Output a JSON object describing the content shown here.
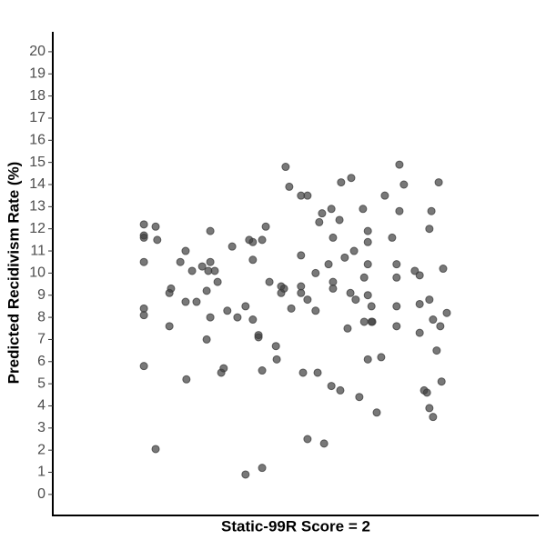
{
  "chart_data": {
    "type": "scatter",
    "xlabel": "Static-99R Score = 2",
    "ylabel": "Predicted Recidivism Rate (%)",
    "x": [
      1.625,
      1.625,
      1.625,
      1.625,
      1.625,
      1.625,
      1.625,
      1.654,
      1.654,
      1.658,
      1.688,
      1.688,
      1.692,
      1.715,
      1.728,
      1.728,
      1.73,
      1.744,
      1.755,
      1.769,
      1.78,
      1.78,
      1.784,
      1.789,
      1.789,
      1.789,
      1.8,
      1.807,
      1.816,
      1.822,
      1.831,
      1.843,
      1.856,
      1.876,
      1.876,
      1.885,
      1.894,
      1.894,
      1.894,
      1.908,
      1.908,
      1.917,
      1.917,
      1.917,
      1.926,
      1.935,
      1.951,
      1.953,
      1.964,
      1.964,
      1.971,
      1.975,
      1.984,
      1.989,
      2.013,
      2.013,
      2.013,
      2.013,
      2.018,
      2.029,
      2.029,
      2.029,
      2.049,
      2.049,
      2.054,
      2.058,
      2.065,
      2.07,
      2.081,
      2.088,
      2.088,
      2.092,
      2.092,
      2.092,
      2.108,
      2.11,
      2.112,
      2.121,
      2.128,
      2.135,
      2.137,
      2.144,
      2.148,
      2.157,
      2.166,
      2.169,
      2.169,
      2.178,
      2.178,
      2.178,
      2.178,
      2.178,
      2.187,
      2.187,
      2.189,
      2.2,
      2.211,
      2.22,
      2.238,
      2.249,
      2.249,
      2.249,
      2.249,
      2.256,
      2.256,
      2.267,
      2.294,
      2.306,
      2.306,
      2.306,
      2.317,
      2.324,
      2.33,
      2.33,
      2.33,
      2.335,
      2.339,
      2.339,
      2.348,
      2.353,
      2.357,
      2.36,
      2.364,
      2.373
    ],
    "values": [
      12.2,
      11.7,
      11.6,
      10.5,
      8.4,
      8.1,
      5.8,
      12.1,
      2.05,
      11.5,
      9.1,
      7.6,
      9.3,
      10.5,
      11.0,
      8.7,
      5.2,
      10.1,
      8.7,
      10.3,
      9.2,
      7.0,
      10.1,
      11.9,
      10.5,
      8.0,
      10.1,
      9.6,
      5.5,
      5.7,
      8.3,
      11.2,
      8.0,
      8.5,
      0.9,
      11.5,
      11.4,
      10.6,
      7.9,
      7.2,
      7.1,
      11.5,
      5.6,
      1.2,
      12.1,
      9.6,
      6.7,
      6.1,
      9.4,
      9.1,
      9.3,
      14.8,
      13.9,
      8.4,
      13.5,
      10.8,
      9.4,
      9.1,
      5.5,
      13.5,
      2.5,
      8.8,
      8.3,
      10.0,
      5.5,
      12.3,
      12.7,
      2.3,
      10.4,
      12.9,
      4.9,
      11.6,
      9.3,
      9.6,
      12.4,
      4.7,
      14.1,
      10.7,
      7.5,
      9.1,
      14.3,
      11.0,
      8.8,
      4.4,
      12.9,
      9.8,
      7.8,
      11.9,
      11.4,
      10.4,
      9.0,
      6.1,
      8.5,
      7.8,
      7.8,
      3.7,
      6.2,
      13.5,
      11.6,
      10.4,
      9.8,
      8.5,
      7.6,
      14.9,
      12.8,
      14.0,
      10.1,
      9.9,
      8.6,
      7.3,
      4.7,
      4.6,
      3.9,
      12.0,
      8.8,
      12.8,
      7.9,
      3.5,
      6.5,
      14.1,
      7.6,
      5.1,
      10.2,
      8.2
    ],
    "color": "#3f3f3f",
    "xlim": [
      1.4,
      2.6
    ],
    "ylim": [
      -0.95,
      20.9
    ],
    "yticks": [
      0,
      1,
      2,
      3,
      4,
      5,
      6,
      7,
      8,
      9,
      10,
      11,
      12,
      13,
      14,
      15,
      16,
      17,
      18,
      19,
      20
    ],
    "grid": false
  }
}
